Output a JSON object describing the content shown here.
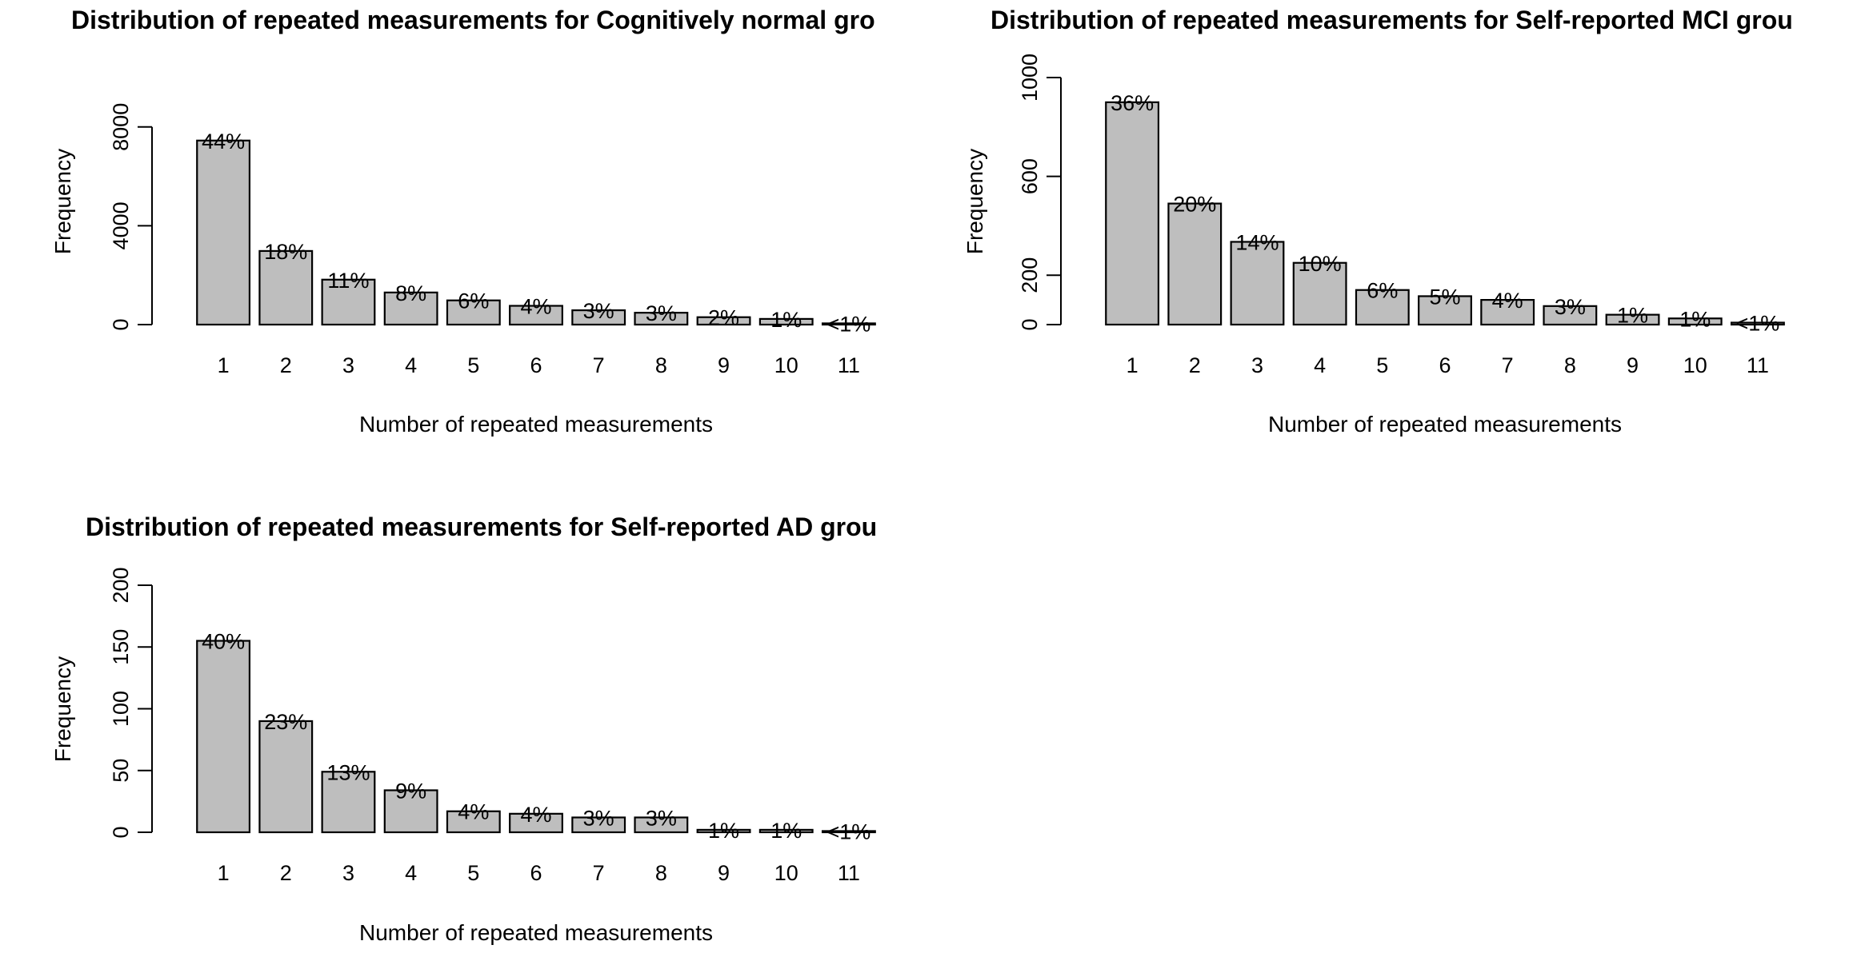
{
  "chart_data": [
    {
      "type": "bar",
      "title": "Distribution of repeated measurements for Cognitively normal gro",
      "xlabel": "Number of repeated measurements",
      "ylabel": "Frequency",
      "categories": [
        "1",
        "2",
        "3",
        "4",
        "5",
        "6",
        "7",
        "8",
        "9",
        "10",
        "11"
      ],
      "values": [
        7450,
        2980,
        1820,
        1300,
        980,
        760,
        580,
        480,
        300,
        230,
        50
      ],
      "data_labels": [
        "44%",
        "18%",
        "11%",
        "8%",
        "6%",
        "4%",
        "3%",
        "3%",
        "2%",
        "1%",
        "<1%"
      ],
      "ylim": [
        0,
        10000
      ],
      "yticks": [
        0,
        4000,
        8000
      ],
      "grid": false,
      "legend": "none"
    },
    {
      "type": "bar",
      "title": "Distribution of repeated measurements for Self-reported MCI grou",
      "xlabel": "Number of repeated measurements",
      "ylabel": "Frequency",
      "categories": [
        "1",
        "2",
        "3",
        "4",
        "5",
        "6",
        "7",
        "8",
        "9",
        "10",
        "11"
      ],
      "values": [
        900,
        490,
        335,
        250,
        140,
        115,
        100,
        75,
        40,
        25,
        8
      ],
      "data_labels": [
        "36%",
        "20%",
        "14%",
        "10%",
        "6%",
        "5%",
        "4%",
        "3%",
        "1%",
        "1%",
        "<1%"
      ],
      "ylim": [
        0,
        1000
      ],
      "yticks": [
        0,
        200,
        600,
        1000
      ],
      "grid": false,
      "legend": "none"
    },
    {
      "type": "bar",
      "title": "Distribution of repeated measurements for Self-reported AD grou",
      "xlabel": "Number of repeated measurements",
      "ylabel": "Frequency",
      "categories": [
        "1",
        "2",
        "3",
        "4",
        "5",
        "6",
        "7",
        "8",
        "9",
        "10",
        "11"
      ],
      "values": [
        155,
        90,
        49,
        34,
        17,
        15,
        12,
        12,
        2,
        2,
        1
      ],
      "data_labels": [
        "40%",
        "23%",
        "13%",
        "9%",
        "4%",
        "4%",
        "3%",
        "3%",
        "1%",
        "1%",
        "<1%"
      ],
      "ylim": [
        0,
        200
      ],
      "yticks": [
        0,
        50,
        100,
        150,
        200
      ],
      "grid": false,
      "legend": "none"
    }
  ]
}
